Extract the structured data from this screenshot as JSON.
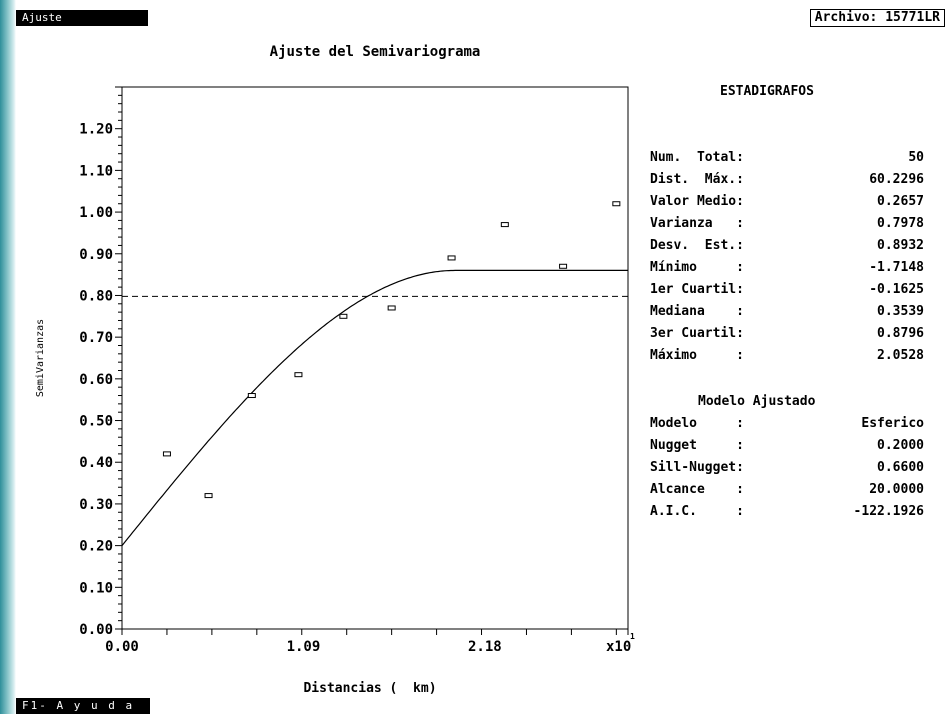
{
  "header": {
    "tab_label": "Ajuste",
    "file_label": "Archivo: 15771LR"
  },
  "footer": {
    "help_label": "F1- A y u d a"
  },
  "stats": {
    "title": "ESTADIGRAFOS",
    "rows": [
      {
        "label": "Num.  Total:",
        "value": "50"
      },
      {
        "label": "Dist.  Máx.:",
        "value": "60.2296"
      },
      {
        "label": "Valor Medio:",
        "value": "0.2657"
      },
      {
        "label": "Varianza   :",
        "value": "0.7978"
      },
      {
        "label": "Desv.  Est.:",
        "value": "0.8932"
      },
      {
        "label": "Mínimo     :",
        "value": "-1.7148"
      },
      {
        "label": "1er Cuartil:",
        "value": "-0.1625"
      },
      {
        "label": "Mediana    :",
        "value": "0.3539"
      },
      {
        "label": "3er Cuartil:",
        "value": "0.8796"
      },
      {
        "label": "Máximo     :",
        "value": "2.0528"
      }
    ]
  },
  "model": {
    "title": "Modelo Ajustado",
    "rows": [
      {
        "label": "Modelo     :",
        "value": "Esferico"
      },
      {
        "label": "Nugget     :",
        "value": "0.2000"
      },
      {
        "label": "Sill-Nugget:",
        "value": "0.6600"
      },
      {
        "label": "Alcance    :",
        "value": "20.0000"
      },
      {
        "label": "A.I.C.     :",
        "value": "-122.1926"
      }
    ]
  },
  "chart_data": {
    "type": "scatter",
    "title": "Ajuste del Semivariograma",
    "xlabel": "Distancias (  km)",
    "ylabel": "SemiVarianzas",
    "x_scale_label": "x10",
    "x_scale_exponent": "1",
    "xlim": [
      0,
      3.04
    ],
    "ylim": [
      0,
      1.3
    ],
    "x_ticks": [
      "0.00",
      "1.09",
      "2.18"
    ],
    "x_tick_values": [
      0,
      1.09,
      2.18
    ],
    "y_ticks": [
      "0.00",
      "0.10",
      "0.20",
      "0.30",
      "0.40",
      "0.50",
      "0.60",
      "0.70",
      "0.80",
      "0.90",
      "1.00",
      "1.10",
      "1.20"
    ],
    "points": {
      "x": [
        0.27,
        0.52,
        0.78,
        1.06,
        1.33,
        1.62,
        1.98,
        2.3,
        2.65,
        2.97
      ],
      "y": [
        0.42,
        0.32,
        0.56,
        0.61,
        0.75,
        0.77,
        0.89,
        0.97,
        0.87,
        1.02
      ]
    },
    "model_curve": {
      "type": "spherical",
      "nugget": 0.2,
      "sill": 0.86,
      "range": 2.0
    },
    "sample_variance_line": 0.7978,
    "grid": false,
    "legend": "none"
  }
}
